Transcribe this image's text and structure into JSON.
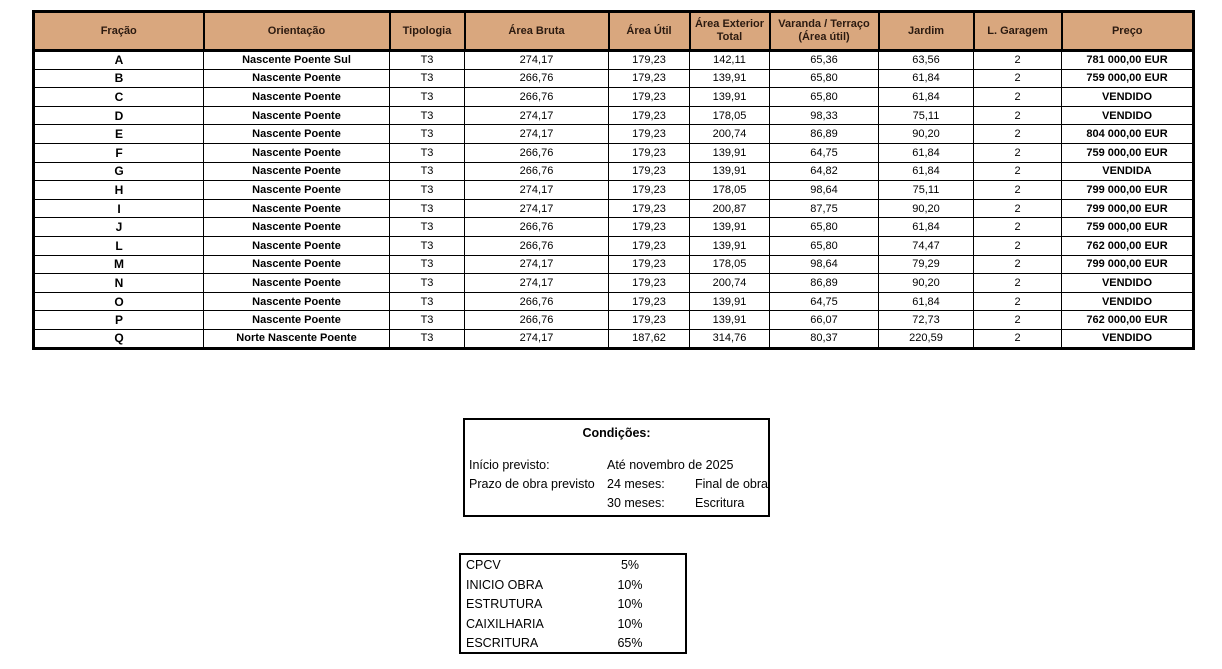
{
  "colors": {
    "header_bg": "#D9A77E",
    "border": "#000000",
    "page_bg": "#FFFFFF"
  },
  "table": {
    "headers": [
      "Fração",
      "Orientação",
      "Tipologia",
      "Área Bruta",
      "Área Útil",
      "Área Exterior Total",
      "Varanda / Terraço (Área útil)",
      "Jardim",
      "L. Garagem",
      "Preço"
    ],
    "rows": [
      [
        "A",
        "Nascente Poente Sul",
        "T3",
        "274,17",
        "179,23",
        "142,11",
        "65,36",
        "63,56",
        "2",
        "781 000,00 EUR"
      ],
      [
        "B",
        "Nascente Poente",
        "T3",
        "266,76",
        "179,23",
        "139,91",
        "65,80",
        "61,84",
        "2",
        "759 000,00 EUR"
      ],
      [
        "C",
        "Nascente Poente",
        "T3",
        "266,76",
        "179,23",
        "139,91",
        "65,80",
        "61,84",
        "2",
        "VENDIDO"
      ],
      [
        "D",
        "Nascente Poente",
        "T3",
        "274,17",
        "179,23",
        "178,05",
        "98,33",
        "75,11",
        "2",
        "VENDIDO"
      ],
      [
        "E",
        "Nascente Poente",
        "T3",
        "274,17",
        "179,23",
        "200,74",
        "86,89",
        "90,20",
        "2",
        "804 000,00 EUR"
      ],
      [
        "F",
        "Nascente Poente",
        "T3",
        "266,76",
        "179,23",
        "139,91",
        "64,75",
        "61,84",
        "2",
        "759 000,00 EUR"
      ],
      [
        "G",
        "Nascente Poente",
        "T3",
        "266,76",
        "179,23",
        "139,91",
        "64,82",
        "61,84",
        "2",
        "VENDIDA"
      ],
      [
        "H",
        "Nascente Poente",
        "T3",
        "274,17",
        "179,23",
        "178,05",
        "98,64",
        "75,11",
        "2",
        "799 000,00 EUR"
      ],
      [
        "I",
        "Nascente Poente",
        "T3",
        "274,17",
        "179,23",
        "200,87",
        "87,75",
        "90,20",
        "2",
        "799 000,00 EUR"
      ],
      [
        "J",
        "Nascente Poente",
        "T3",
        "266,76",
        "179,23",
        "139,91",
        "65,80",
        "61,84",
        "2",
        "759 000,00 EUR"
      ],
      [
        "L",
        "Nascente Poente",
        "T3",
        "266,76",
        "179,23",
        "139,91",
        "65,80",
        "74,47",
        "2",
        "762 000,00 EUR"
      ],
      [
        "M",
        "Nascente Poente",
        "T3",
        "274,17",
        "179,23",
        "178,05",
        "98,64",
        "79,29",
        "2",
        "799 000,00 EUR"
      ],
      [
        "N",
        "Nascente Poente",
        "T3",
        "274,17",
        "179,23",
        "200,74",
        "86,89",
        "90,20",
        "2",
        "VENDIDO"
      ],
      [
        "O",
        "Nascente Poente",
        "T3",
        "266,76",
        "179,23",
        "139,91",
        "64,75",
        "61,84",
        "2",
        "VENDIDO"
      ],
      [
        "P",
        "Nascente Poente",
        "T3",
        "266,76",
        "179,23",
        "139,91",
        "66,07",
        "72,73",
        "2",
        "762 000,00 EUR"
      ],
      [
        "Q",
        "Norte Nascente Poente",
        "T3",
        "274,17",
        "187,62",
        "314,76",
        "80,37",
        "220,59",
        "2",
        "VENDIDO"
      ]
    ]
  },
  "conditions": {
    "title": "Condições:",
    "rows": [
      {
        "label": "Início previsto:",
        "mid": "Até novembro de 2025",
        "right": ""
      },
      {
        "label": "Prazo de obra previsto",
        "mid": "24 meses:",
        "right": "Final de obra"
      },
      {
        "label": "",
        "mid": "30 meses:",
        "right": "Escritura"
      }
    ]
  },
  "payments": {
    "items": [
      {
        "label": "CPCV",
        "value": "5%"
      },
      {
        "label": "INICIO OBRA",
        "value": "10%"
      },
      {
        "label": "ESTRUTURA",
        "value": "10%"
      },
      {
        "label": "CAIXILHARIA",
        "value": "10%"
      },
      {
        "label": "ESCRITURA",
        "value": "65%"
      }
    ]
  }
}
